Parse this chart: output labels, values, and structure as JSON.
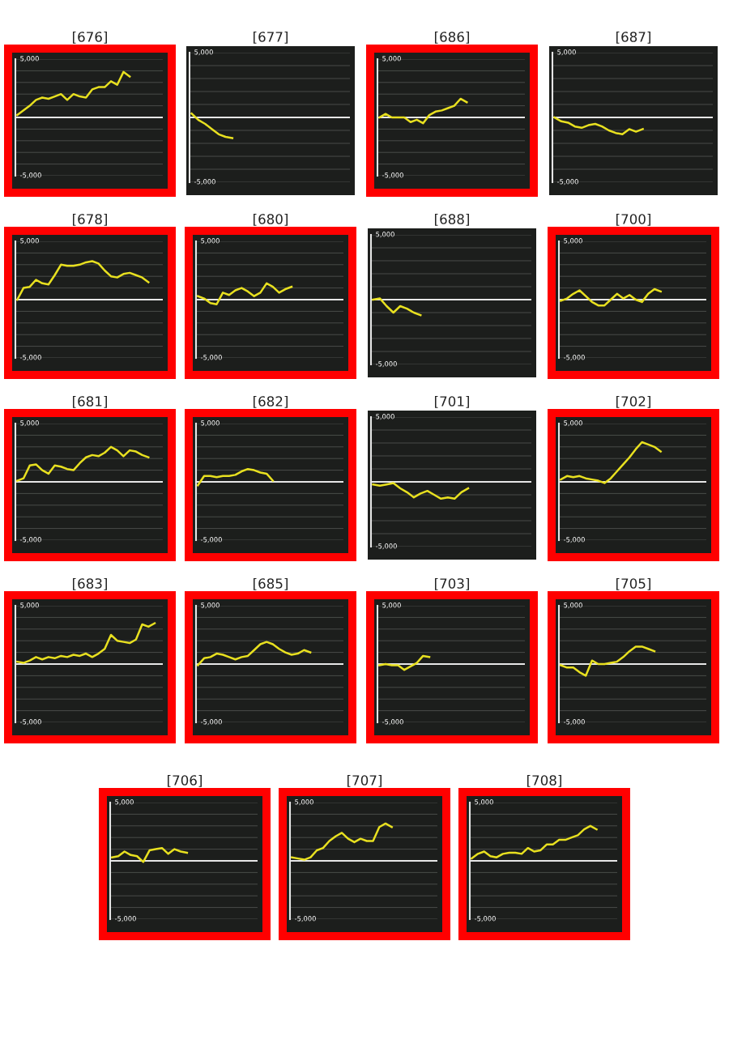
{
  "chart_data": [
    {
      "type": "line",
      "title": "[676]",
      "categories": [
        null,
        null,
        null,
        null,
        null,
        null,
        null,
        null,
        null,
        null,
        null,
        null,
        null,
        null,
        null,
        null,
        null,
        null,
        null,
        null,
        null,
        null,
        null,
        null
      ],
      "series": [
        {
          "color": "#e8e020",
          "values": [
            200,
            600,
            1000,
            1500,
            1700,
            1600,
            1800,
            2000,
            1500,
            2000,
            1800,
            1700,
            2400,
            2600,
            2600,
            3100,
            2800,
            3900,
            3500,
            null,
            null,
            null,
            null,
            null
          ]
        }
      ],
      "ylim": [
        -5000,
        5000
      ],
      "yticks": [
        {
          "value": 5000,
          "label": "5,000"
        },
        {
          "value": 4000,
          "label": null
        },
        {
          "value": 3000,
          "label": null
        },
        {
          "value": 2000,
          "label": null
        },
        {
          "value": 1000,
          "label": null
        },
        {
          "value": -1000,
          "label": null
        },
        {
          "value": -2000,
          "label": null
        },
        {
          "value": -3000,
          "label": null
        },
        {
          "value": -4000,
          "label": null
        },
        {
          "value": -5000,
          "label": "-5,000"
        }
      ],
      "grid": "y",
      "tick_labels": "y",
      "ref_lines": [
        {
          "axis": "y",
          "value": 0,
          "color": "#e6e6e6"
        }
      ]
    },
    {
      "type": "line",
      "title": "[677]",
      "categories": [
        null,
        null,
        null,
        null,
        null,
        null,
        null,
        null,
        null,
        null,
        null,
        null,
        null,
        null,
        null,
        null,
        null,
        null,
        null,
        null,
        null,
        null,
        null,
        null
      ],
      "series": [
        {
          "color": "#e8e020",
          "values": [
            300,
            -200,
            -500,
            -900,
            -1300,
            -1500,
            -1600,
            null,
            null,
            null,
            null,
            null,
            null,
            null,
            null,
            null,
            null,
            null,
            null,
            null,
            null,
            null,
            null,
            null
          ]
        }
      ],
      "ylim": [
        -5000,
        5000
      ],
      "yticks": [
        {
          "value": 5000,
          "label": "5,000"
        },
        {
          "value": 4000,
          "label": null
        },
        {
          "value": 3000,
          "label": null
        },
        {
          "value": 2000,
          "label": null
        },
        {
          "value": 1000,
          "label": null
        },
        {
          "value": -1000,
          "label": null
        },
        {
          "value": -2000,
          "label": null
        },
        {
          "value": -3000,
          "label": null
        },
        {
          "value": -4000,
          "label": null
        },
        {
          "value": -5000,
          "label": "-5,000"
        }
      ],
      "grid": "y",
      "tick_labels": "y",
      "ref_lines": [
        {
          "axis": "y",
          "value": 0,
          "color": "#e6e6e6"
        }
      ]
    },
    {
      "type": "line",
      "title": "[686]",
      "categories": [
        null,
        null,
        null,
        null,
        null,
        null,
        null,
        null,
        null,
        null,
        null,
        null,
        null,
        null,
        null,
        null,
        null,
        null,
        null,
        null,
        null,
        null,
        null,
        null
      ],
      "series": [
        {
          "color": "#e8e020",
          "values": [
            0,
            300,
            0,
            0,
            0,
            -400,
            -200,
            -500,
            200,
            500,
            600,
            800,
            1000,
            1600,
            1300,
            null,
            null,
            null,
            null,
            null,
            null,
            null,
            null,
            null
          ]
        }
      ],
      "ylim": [
        -5000,
        5000
      ],
      "yticks": [
        {
          "value": 5000,
          "label": "5,000"
        },
        {
          "value": 4000,
          "label": null
        },
        {
          "value": 3000,
          "label": null
        },
        {
          "value": 2000,
          "label": null
        },
        {
          "value": 1000,
          "label": null
        },
        {
          "value": -1000,
          "label": null
        },
        {
          "value": -2000,
          "label": null
        },
        {
          "value": -3000,
          "label": null
        },
        {
          "value": -4000,
          "label": null
        },
        {
          "value": -5000,
          "label": "-5,000"
        }
      ],
      "grid": "y",
      "tick_labels": "y",
      "ref_lines": [
        {
          "axis": "y",
          "value": 0,
          "color": "#e6e6e6"
        }
      ]
    },
    {
      "type": "line",
      "title": "[687]",
      "categories": [
        null,
        null,
        null,
        null,
        null,
        null,
        null,
        null,
        null,
        null,
        null,
        null,
        null,
        null,
        null,
        null,
        null,
        null,
        null,
        null,
        null,
        null,
        null,
        null
      ],
      "series": [
        {
          "color": "#e8e020",
          "values": [
            0,
            -300,
            -400,
            -700,
            -800,
            -600,
            -500,
            -700,
            -1000,
            -1200,
            -1300,
            -900,
            -1100,
            -900,
            null,
            null,
            null,
            null,
            null,
            null,
            null,
            null,
            null,
            null
          ]
        }
      ],
      "ylim": [
        -5000,
        5000
      ],
      "yticks": [
        {
          "value": 5000,
          "label": "5,000"
        },
        {
          "value": 4000,
          "label": null
        },
        {
          "value": 3000,
          "label": null
        },
        {
          "value": 2000,
          "label": null
        },
        {
          "value": 1000,
          "label": null
        },
        {
          "value": -1000,
          "label": null
        },
        {
          "value": -2000,
          "label": null
        },
        {
          "value": -3000,
          "label": null
        },
        {
          "value": -4000,
          "label": null
        },
        {
          "value": -5000,
          "label": "-5,000"
        }
      ],
      "grid": "y",
      "tick_labels": "y",
      "ref_lines": [
        {
          "axis": "y",
          "value": 0,
          "color": "#e6e6e6"
        }
      ]
    },
    {
      "type": "line",
      "title": "[678]",
      "categories": [
        null,
        null,
        null,
        null,
        null,
        null,
        null,
        null,
        null,
        null,
        null,
        null,
        null,
        null,
        null,
        null,
        null,
        null,
        null,
        null,
        null,
        null,
        null,
        null
      ],
      "series": [
        {
          "color": "#e8e020",
          "values": [
            0,
            1000,
            1100,
            1700,
            1400,
            1300,
            2100,
            3000,
            2900,
            2900,
            3000,
            3200,
            3300,
            3100,
            2500,
            2000,
            1900,
            2200,
            2300,
            2100,
            1900,
            1500,
            null,
            null
          ]
        }
      ],
      "ylim": [
        -5000,
        5000
      ],
      "yticks": [
        {
          "value": 5000,
          "label": "5,000"
        },
        {
          "value": 4000,
          "label": null
        },
        {
          "value": 3000,
          "label": null
        },
        {
          "value": 2000,
          "label": null
        },
        {
          "value": 1000,
          "label": null
        },
        {
          "value": -1000,
          "label": null
        },
        {
          "value": -2000,
          "label": null
        },
        {
          "value": -3000,
          "label": null
        },
        {
          "value": -4000,
          "label": null
        },
        {
          "value": -5000,
          "label": "-5,000"
        }
      ],
      "grid": "y",
      "tick_labels": "y",
      "ref_lines": [
        {
          "axis": "y",
          "value": 0,
          "color": "#e6e6e6"
        }
      ]
    },
    {
      "type": "line",
      "title": "[680]",
      "categories": [
        null,
        null,
        null,
        null,
        null,
        null,
        null,
        null,
        null,
        null,
        null,
        null,
        null,
        null,
        null,
        null,
        null,
        null,
        null,
        null,
        null,
        null,
        null,
        null
      ],
      "series": [
        {
          "color": "#e8e020",
          "values": [
            300,
            100,
            -300,
            -400,
            600,
            400,
            800,
            1000,
            700,
            300,
            600,
            1400,
            1100,
            600,
            900,
            1100,
            null,
            null,
            null,
            null,
            null,
            null,
            null,
            null
          ]
        }
      ],
      "ylim": [
        -5000,
        5000
      ],
      "yticks": [
        {
          "value": 5000,
          "label": "5,000"
        },
        {
          "value": 4000,
          "label": null
        },
        {
          "value": 3000,
          "label": null
        },
        {
          "value": 2000,
          "label": null
        },
        {
          "value": 1000,
          "label": null
        },
        {
          "value": -1000,
          "label": null
        },
        {
          "value": -2000,
          "label": null
        },
        {
          "value": -3000,
          "label": null
        },
        {
          "value": -4000,
          "label": null
        },
        {
          "value": -5000,
          "label": "-5,000"
        }
      ],
      "grid": "y",
      "tick_labels": "y",
      "ref_lines": [
        {
          "axis": "y",
          "value": 0,
          "color": "#e6e6e6"
        }
      ]
    },
    {
      "type": "line",
      "title": "[688]",
      "categories": [
        null,
        null,
        null,
        null,
        null,
        null,
        null,
        null,
        null,
        null,
        null,
        null,
        null,
        null,
        null,
        null,
        null,
        null,
        null,
        null,
        null,
        null,
        null,
        null
      ],
      "series": [
        {
          "color": "#e8e020",
          "values": [
            0,
            100,
            -500,
            -1000,
            -500,
            -700,
            -1000,
            -1200,
            null,
            null,
            null,
            null,
            null,
            null,
            null,
            null,
            null,
            null,
            null,
            null,
            null,
            null,
            null,
            null
          ]
        }
      ],
      "ylim": [
        -5000,
        5000
      ],
      "yticks": [
        {
          "value": 5000,
          "label": "5,000"
        },
        {
          "value": 4000,
          "label": null
        },
        {
          "value": 3000,
          "label": null
        },
        {
          "value": 2000,
          "label": null
        },
        {
          "value": 1000,
          "label": null
        },
        {
          "value": -1000,
          "label": null
        },
        {
          "value": -2000,
          "label": null
        },
        {
          "value": -3000,
          "label": null
        },
        {
          "value": -4000,
          "label": null
        },
        {
          "value": -5000,
          "label": "-5,000"
        }
      ],
      "grid": "y",
      "tick_labels": "y",
      "ref_lines": [
        {
          "axis": "y",
          "value": 0,
          "color": "#e6e6e6"
        }
      ]
    },
    {
      "type": "line",
      "title": "[700]",
      "categories": [
        null,
        null,
        null,
        null,
        null,
        null,
        null,
        null,
        null,
        null,
        null,
        null,
        null,
        null,
        null,
        null,
        null,
        null,
        null,
        null,
        null,
        null,
        null,
        null
      ],
      "series": [
        {
          "color": "#e8e020",
          "values": [
            -100,
            100,
            500,
            800,
            300,
            -200,
            -500,
            -500,
            0,
            500,
            100,
            400,
            0,
            -200,
            500,
            900,
            700,
            null,
            null,
            null,
            null,
            null,
            null,
            null
          ]
        }
      ],
      "ylim": [
        -5000,
        5000
      ],
      "yticks": [
        {
          "value": 5000,
          "label": "5,000"
        },
        {
          "value": 4000,
          "label": null
        },
        {
          "value": 3000,
          "label": null
        },
        {
          "value": 2000,
          "label": null
        },
        {
          "value": 1000,
          "label": null
        },
        {
          "value": -1000,
          "label": null
        },
        {
          "value": -2000,
          "label": null
        },
        {
          "value": -3000,
          "label": null
        },
        {
          "value": -4000,
          "label": null
        },
        {
          "value": -5000,
          "label": "-5,000"
        }
      ],
      "grid": "y",
      "tick_labels": "y",
      "ref_lines": [
        {
          "axis": "y",
          "value": 0,
          "color": "#e6e6e6"
        }
      ]
    },
    {
      "type": "line",
      "title": "[681]",
      "categories": [
        null,
        null,
        null,
        null,
        null,
        null,
        null,
        null,
        null,
        null,
        null,
        null,
        null,
        null,
        null,
        null,
        null,
        null,
        null,
        null,
        null,
        null,
        null,
        null
      ],
      "series": [
        {
          "color": "#e8e020",
          "values": [
            100,
            300,
            1400,
            1500,
            1000,
            700,
            1400,
            1300,
            1100,
            1000,
            1600,
            2100,
            2300,
            2200,
            2500,
            3000,
            2700,
            2200,
            2700,
            2600,
            2300,
            2100,
            null,
            null
          ]
        }
      ],
      "ylim": [
        -5000,
        5000
      ],
      "yticks": [
        {
          "value": 5000,
          "label": "5,000"
        },
        {
          "value": 4000,
          "label": null
        },
        {
          "value": 3000,
          "label": null
        },
        {
          "value": 2000,
          "label": null
        },
        {
          "value": 1000,
          "label": null
        },
        {
          "value": -1000,
          "label": null
        },
        {
          "value": -2000,
          "label": null
        },
        {
          "value": -3000,
          "label": null
        },
        {
          "value": -4000,
          "label": null
        },
        {
          "value": -5000,
          "label": "-5,000"
        }
      ],
      "grid": "y",
      "tick_labels": "y",
      "ref_lines": [
        {
          "axis": "y",
          "value": 0,
          "color": "#e6e6e6"
        }
      ]
    },
    {
      "type": "line",
      "title": "[682]",
      "categories": [
        null,
        null,
        null,
        null,
        null,
        null,
        null,
        null,
        null,
        null,
        null,
        null,
        null,
        null,
        null,
        null,
        null,
        null,
        null,
        null,
        null,
        null,
        null,
        null
      ],
      "series": [
        {
          "color": "#e8e020",
          "values": [
            -300,
            500,
            500,
            400,
            500,
            500,
            600,
            900,
            1100,
            1000,
            800,
            700,
            100,
            null,
            null,
            null,
            null,
            null,
            null,
            null,
            null,
            null,
            null,
            null
          ]
        }
      ],
      "ylim": [
        -5000,
        5000
      ],
      "yticks": [
        {
          "value": 5000,
          "label": "5,000"
        },
        {
          "value": 4000,
          "label": null
        },
        {
          "value": 3000,
          "label": null
        },
        {
          "value": 2000,
          "label": null
        },
        {
          "value": 1000,
          "label": null
        },
        {
          "value": -1000,
          "label": null
        },
        {
          "value": -2000,
          "label": null
        },
        {
          "value": -3000,
          "label": null
        },
        {
          "value": -4000,
          "label": null
        },
        {
          "value": -5000,
          "label": "-5,000"
        }
      ],
      "grid": "y",
      "tick_labels": "y",
      "ref_lines": [
        {
          "axis": "y",
          "value": 0,
          "color": "#e6e6e6"
        }
      ]
    },
    {
      "type": "line",
      "title": "[701]",
      "categories": [
        null,
        null,
        null,
        null,
        null,
        null,
        null,
        null,
        null,
        null,
        null,
        null,
        null,
        null,
        null,
        null,
        null,
        null,
        null,
        null,
        null,
        null,
        null,
        null
      ],
      "series": [
        {
          "color": "#e8e020",
          "values": [
            -200,
            -300,
            -200,
            -100,
            -500,
            -800,
            -1200,
            -900,
            -700,
            -1000,
            -1300,
            -1200,
            -1300,
            -800,
            -500,
            null,
            null,
            null,
            null,
            null,
            null,
            null,
            null,
            null
          ]
        }
      ],
      "ylim": [
        -5000,
        5000
      ],
      "yticks": [
        {
          "value": 5000,
          "label": "5,000"
        },
        {
          "value": 4000,
          "label": null
        },
        {
          "value": 3000,
          "label": null
        },
        {
          "value": 2000,
          "label": null
        },
        {
          "value": 1000,
          "label": null
        },
        {
          "value": -1000,
          "label": null
        },
        {
          "value": -2000,
          "label": null
        },
        {
          "value": -3000,
          "label": null
        },
        {
          "value": -4000,
          "label": null
        },
        {
          "value": -5000,
          "label": "-5,000"
        }
      ],
      "grid": "y",
      "tick_labels": "y",
      "ref_lines": [
        {
          "axis": "y",
          "value": 0,
          "color": "#e6e6e6"
        }
      ]
    },
    {
      "type": "line",
      "title": "[702]",
      "categories": [
        null,
        null,
        null,
        null,
        null,
        null,
        null,
        null,
        null,
        null,
        null,
        null,
        null,
        null,
        null,
        null,
        null,
        null,
        null,
        null,
        null,
        null,
        null,
        null
      ],
      "series": [
        {
          "color": "#e8e020",
          "values": [
            200,
            500,
            400,
            500,
            300,
            200,
            100,
            -100,
            300,
            900,
            1500,
            2100,
            2800,
            3400,
            3200,
            3000,
            2600,
            null,
            null,
            null,
            null,
            null,
            null,
            null
          ]
        }
      ],
      "ylim": [
        -5000,
        5000
      ],
      "yticks": [
        {
          "value": 5000,
          "label": "5,000"
        },
        {
          "value": 4000,
          "label": null
        },
        {
          "value": 3000,
          "label": null
        },
        {
          "value": 2000,
          "label": null
        },
        {
          "value": 1000,
          "label": null
        },
        {
          "value": -1000,
          "label": null
        },
        {
          "value": -2000,
          "label": null
        },
        {
          "value": -3000,
          "label": null
        },
        {
          "value": -4000,
          "label": null
        },
        {
          "value": -5000,
          "label": "-5,000"
        }
      ],
      "grid": "y",
      "tick_labels": "y",
      "ref_lines": [
        {
          "axis": "y",
          "value": 0,
          "color": "#e6e6e6"
        }
      ]
    },
    {
      "type": "line",
      "title": "[683]",
      "categories": [
        null,
        null,
        null,
        null,
        null,
        null,
        null,
        null,
        null,
        null,
        null,
        null,
        null,
        null,
        null,
        null,
        null,
        null,
        null,
        null,
        null,
        null,
        null,
        null
      ],
      "series": [
        {
          "color": "#e8e020",
          "values": [
            200,
            100,
            300,
            600,
            400,
            600,
            500,
            700,
            600,
            800,
            700,
            900,
            600,
            900,
            1300,
            2500,
            2000,
            1900,
            1800,
            2100,
            3400,
            3200,
            3500,
            null
          ]
        }
      ],
      "ylim": [
        -5000,
        5000
      ],
      "yticks": [
        {
          "value": 5000,
          "label": "5,000"
        },
        {
          "value": 4000,
          "label": null
        },
        {
          "value": 3000,
          "label": null
        },
        {
          "value": 2000,
          "label": null
        },
        {
          "value": 1000,
          "label": null
        },
        {
          "value": -1000,
          "label": null
        },
        {
          "value": -2000,
          "label": null
        },
        {
          "value": -3000,
          "label": null
        },
        {
          "value": -4000,
          "label": null
        },
        {
          "value": -5000,
          "label": "-5,000"
        }
      ],
      "grid": "y",
      "tick_labels": "y",
      "ref_lines": [
        {
          "axis": "y",
          "value": 0,
          "color": "#e6e6e6"
        }
      ]
    },
    {
      "type": "line",
      "title": "[685]",
      "categories": [
        null,
        null,
        null,
        null,
        null,
        null,
        null,
        null,
        null,
        null,
        null,
        null,
        null,
        null,
        null,
        null,
        null,
        null,
        null,
        null,
        null,
        null,
        null,
        null
      ],
      "series": [
        {
          "color": "#e8e020",
          "values": [
            -100,
            500,
            600,
            900,
            800,
            600,
            400,
            600,
            700,
            1200,
            1700,
            1900,
            1700,
            1300,
            1000,
            800,
            900,
            1200,
            1000,
            null,
            null,
            null,
            null,
            null
          ]
        }
      ],
      "ylim": [
        -5000,
        5000
      ],
      "yticks": [
        {
          "value": 5000,
          "label": "5,000"
        },
        {
          "value": 4000,
          "label": null
        },
        {
          "value": 3000,
          "label": null
        },
        {
          "value": 2000,
          "label": null
        },
        {
          "value": 1000,
          "label": null
        },
        {
          "value": -1000,
          "label": null
        },
        {
          "value": -2000,
          "label": null
        },
        {
          "value": -3000,
          "label": null
        },
        {
          "value": -4000,
          "label": null
        },
        {
          "value": -5000,
          "label": "-5,000"
        }
      ],
      "grid": "y",
      "tick_labels": "y",
      "ref_lines": [
        {
          "axis": "y",
          "value": 0,
          "color": "#e6e6e6"
        }
      ]
    },
    {
      "type": "line",
      "title": "[703]",
      "categories": [
        null,
        null,
        null,
        null,
        null,
        null,
        null,
        null,
        null,
        null,
        null,
        null,
        null,
        null,
        null,
        null,
        null,
        null,
        null,
        null,
        null,
        null,
        null,
        null
      ],
      "series": [
        {
          "color": "#e8e020",
          "values": [
            -100,
            0,
            -100,
            -100,
            -500,
            -200,
            100,
            700,
            600,
            null,
            null,
            null,
            null,
            null,
            null,
            null,
            null,
            null,
            null,
            null,
            null,
            null,
            null,
            null
          ]
        }
      ],
      "ylim": [
        -5000,
        5000
      ],
      "yticks": [
        {
          "value": 5000,
          "label": "5,000"
        },
        {
          "value": 4000,
          "label": null
        },
        {
          "value": 3000,
          "label": null
        },
        {
          "value": 2000,
          "label": null
        },
        {
          "value": 1000,
          "label": null
        },
        {
          "value": -1000,
          "label": null
        },
        {
          "value": -2000,
          "label": null
        },
        {
          "value": -3000,
          "label": null
        },
        {
          "value": -4000,
          "label": null
        },
        {
          "value": -5000,
          "label": "-5,000"
        }
      ],
      "grid": "y",
      "tick_labels": "y",
      "ref_lines": [
        {
          "axis": "y",
          "value": 0,
          "color": "#e6e6e6"
        }
      ]
    },
    {
      "type": "line",
      "title": "[705]",
      "categories": [
        null,
        null,
        null,
        null,
        null,
        null,
        null,
        null,
        null,
        null,
        null,
        null,
        null,
        null,
        null,
        null,
        null,
        null,
        null,
        null,
        null,
        null,
        null,
        null
      ],
      "series": [
        {
          "color": "#e8e020",
          "values": [
            -100,
            -300,
            -300,
            -700,
            -1000,
            300,
            0,
            0,
            100,
            200,
            600,
            1100,
            1500,
            1500,
            1300,
            1100,
            null,
            null,
            null,
            null,
            null,
            null,
            null,
            null
          ]
        }
      ],
      "ylim": [
        -5000,
        5000
      ],
      "yticks": [
        {
          "value": 5000,
          "label": "5,000"
        },
        {
          "value": 4000,
          "label": null
        },
        {
          "value": 3000,
          "label": null
        },
        {
          "value": 2000,
          "label": null
        },
        {
          "value": 1000,
          "label": null
        },
        {
          "value": -1000,
          "label": null
        },
        {
          "value": -2000,
          "label": null
        },
        {
          "value": -3000,
          "label": null
        },
        {
          "value": -4000,
          "label": null
        },
        {
          "value": -5000,
          "label": "-5,000"
        }
      ],
      "grid": "y",
      "tick_labels": "y",
      "ref_lines": [
        {
          "axis": "y",
          "value": 0,
          "color": "#e6e6e6"
        }
      ]
    },
    {
      "type": "line",
      "title": "[706]",
      "categories": [
        null,
        null,
        null,
        null,
        null,
        null,
        null,
        null,
        null,
        null,
        null,
        null,
        null,
        null,
        null,
        null,
        null,
        null,
        null,
        null,
        null,
        null,
        null,
        null
      ],
      "series": [
        {
          "color": "#e8e020",
          "values": [
            300,
            400,
            800,
            500,
            400,
            -100,
            900,
            1000,
            1100,
            600,
            1000,
            800,
            700,
            null,
            null,
            null,
            null,
            null,
            null,
            null,
            null,
            null,
            null,
            null
          ]
        }
      ],
      "ylim": [
        -5000,
        5000
      ],
      "yticks": [
        {
          "value": 5000,
          "label": "5,000"
        },
        {
          "value": 4000,
          "label": null
        },
        {
          "value": 3000,
          "label": null
        },
        {
          "value": 2000,
          "label": null
        },
        {
          "value": 1000,
          "label": null
        },
        {
          "value": -1000,
          "label": null
        },
        {
          "value": -2000,
          "label": null
        },
        {
          "value": -3000,
          "label": null
        },
        {
          "value": -4000,
          "label": null
        },
        {
          "value": -5000,
          "label": "-5,000"
        }
      ],
      "grid": "y",
      "tick_labels": "y",
      "ref_lines": [
        {
          "axis": "y",
          "value": 0,
          "color": "#e6e6e6"
        }
      ]
    },
    {
      "type": "line",
      "title": "[707]",
      "categories": [
        null,
        null,
        null,
        null,
        null,
        null,
        null,
        null,
        null,
        null,
        null,
        null,
        null,
        null,
        null,
        null,
        null,
        null,
        null,
        null,
        null,
        null,
        null,
        null
      ],
      "series": [
        {
          "color": "#e8e020",
          "values": [
            300,
            200,
            100,
            300,
            900,
            1100,
            1700,
            2100,
            2400,
            1900,
            1600,
            1900,
            1700,
            1700,
            2900,
            3200,
            2900,
            null,
            null,
            null,
            null,
            null,
            null,
            null
          ]
        }
      ],
      "ylim": [
        -5000,
        5000
      ],
      "yticks": [
        {
          "value": 5000,
          "label": "5,000"
        },
        {
          "value": 4000,
          "label": null
        },
        {
          "value": 3000,
          "label": null
        },
        {
          "value": 2000,
          "label": null
        },
        {
          "value": 1000,
          "label": null
        },
        {
          "value": -1000,
          "label": null
        },
        {
          "value": -2000,
          "label": null
        },
        {
          "value": -3000,
          "label": null
        },
        {
          "value": -4000,
          "label": null
        },
        {
          "value": -5000,
          "label": "-5,000"
        }
      ],
      "grid": "y",
      "tick_labels": "y",
      "ref_lines": [
        {
          "axis": "y",
          "value": 0,
          "color": "#e6e6e6"
        }
      ]
    },
    {
      "type": "line",
      "title": "[708]",
      "categories": [
        null,
        null,
        null,
        null,
        null,
        null,
        null,
        null,
        null,
        null,
        null,
        null,
        null,
        null,
        null,
        null,
        null,
        null,
        null,
        null,
        null,
        null,
        null,
        null
      ],
      "series": [
        {
          "color": "#e8e020",
          "values": [
            200,
            600,
            800,
            400,
            300,
            600,
            700,
            700,
            600,
            1100,
            800,
            900,
            1400,
            1400,
            1800,
            1800,
            2000,
            2200,
            2700,
            3000,
            2700,
            null,
            null,
            null
          ]
        }
      ],
      "ylim": [
        -5000,
        5000
      ],
      "yticks": [
        {
          "value": 5000,
          "label": "5,000"
        },
        {
          "value": 4000,
          "label": null
        },
        {
          "value": 3000,
          "label": null
        },
        {
          "value": 2000,
          "label": null
        },
        {
          "value": 1000,
          "label": null
        },
        {
          "value": -1000,
          "label": null
        },
        {
          "value": -2000,
          "label": null
        },
        {
          "value": -3000,
          "label": null
        },
        {
          "value": -4000,
          "label": null
        },
        {
          "value": -5000,
          "label": "-5,000"
        }
      ],
      "grid": "y",
      "tick_labels": "y",
      "ref_lines": [
        {
          "axis": "y",
          "value": 0,
          "color": "#e6e6e6"
        }
      ]
    }
  ]
}
